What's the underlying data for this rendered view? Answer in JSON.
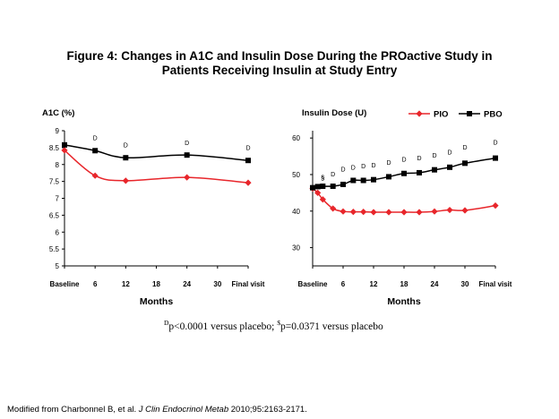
{
  "title": {
    "line1": "Figure 4: Changes in A1C and Insulin Dose During the PROactive Study in",
    "line2": "Patients Receiving Insulin at Study Entry"
  },
  "footnote": {
    "sup_a": "D",
    "text_a": "p<0.0001 versus placebo; ",
    "sup_b": "$",
    "text_b": "p=0.0371 versus placebo"
  },
  "source": {
    "prefix": "Modified from Charbonnel B, et al. ",
    "journal": "J Clin Endocrinol Metab",
    "suffix": " 2010;95:2163-2171."
  },
  "colors": {
    "pio": "#e8262b",
    "pbo": "#000000"
  },
  "chart_data": [
    {
      "type": "line",
      "ylabel": "A1C (%)",
      "xlabel": "Months",
      "ylim": [
        5,
        9
      ],
      "xlim": [
        0,
        36
      ],
      "yticks": [
        5,
        5.5,
        6,
        6.5,
        7,
        7.5,
        8,
        8.5,
        9
      ],
      "xticks": [
        {
          "v": 0,
          "label": "Baseline",
          "bold": true
        },
        {
          "v": 6,
          "label": "6"
        },
        {
          "v": 12,
          "label": "12"
        },
        {
          "v": 18,
          "label": "18"
        },
        {
          "v": 24,
          "label": "24"
        },
        {
          "v": 30,
          "label": "30"
        },
        {
          "v": 36,
          "label": "Final visit",
          "bold": true
        }
      ],
      "series": [
        {
          "key": "pio",
          "marker": "diamond",
          "x": [
            0,
            6,
            12,
            24,
            36
          ],
          "y": [
            8.42,
            7.67,
            7.52,
            7.62,
            7.46
          ]
        },
        {
          "key": "pbo",
          "marker": "square",
          "x": [
            0,
            6,
            12,
            24,
            36
          ],
          "y": [
            8.58,
            8.41,
            8.2,
            8.28,
            8.12
          ]
        }
      ],
      "annotations": [
        {
          "x": 6,
          "y": 8.72,
          "text": "D"
        },
        {
          "x": 12,
          "y": 8.51,
          "text": "D"
        },
        {
          "x": 24,
          "y": 8.58,
          "text": "D"
        },
        {
          "x": 36,
          "y": 8.43,
          "text": "D"
        }
      ]
    },
    {
      "type": "line",
      "ylabel": "Insulin Dose (U)",
      "xlabel": "Months",
      "ylim": [
        25,
        62
      ],
      "xlim": [
        0,
        36
      ],
      "yticks": [
        30,
        40,
        50,
        60
      ],
      "xticks": [
        {
          "v": 0,
          "label": "Baseline",
          "bold": true
        },
        {
          "v": 6,
          "label": "6"
        },
        {
          "v": 12,
          "label": "12"
        },
        {
          "v": 18,
          "label": "18"
        },
        {
          "v": 24,
          "label": "24"
        },
        {
          "v": 30,
          "label": "30"
        },
        {
          "v": 36,
          "label": "Final visit",
          "bold": true
        }
      ],
      "legend": {
        "position": "top",
        "entries": [
          {
            "key": "pio",
            "label": "PIO"
          },
          {
            "key": "pbo",
            "label": "PBO"
          }
        ]
      },
      "series": [
        {
          "key": "pio",
          "name": "PIO",
          "marker": "diamond",
          "x": [
            0,
            1,
            2,
            4,
            6,
            8,
            10,
            12,
            15,
            18,
            21,
            24,
            27,
            30,
            36
          ],
          "y": [
            46.2,
            45.0,
            43.2,
            40.7,
            39.9,
            39.8,
            39.8,
            39.7,
            39.7,
            39.7,
            39.7,
            39.9,
            40.3,
            40.2,
            41.5
          ]
        },
        {
          "key": "pbo",
          "name": "PBO",
          "marker": "square",
          "x": [
            0,
            1,
            2,
            4,
            6,
            8,
            10,
            12,
            15,
            18,
            21,
            24,
            27,
            30,
            36
          ],
          "y": [
            46.4,
            46.7,
            46.8,
            46.8,
            47.3,
            48.4,
            48.4,
            48.6,
            49.4,
            50.3,
            50.5,
            51.3,
            52.0,
            53.1,
            54.5
          ]
        }
      ],
      "annotations": [
        {
          "x": 2,
          "y": 48.7,
          "text": "§"
        },
        {
          "x": 4,
          "y": 49.5,
          "text": "D"
        },
        {
          "x": 6,
          "y": 50.8,
          "text": "D"
        },
        {
          "x": 8,
          "y": 51.4,
          "text": "D"
        },
        {
          "x": 10,
          "y": 51.7,
          "text": "D"
        },
        {
          "x": 12,
          "y": 51.9,
          "text": "D"
        },
        {
          "x": 15,
          "y": 52.7,
          "text": "D"
        },
        {
          "x": 18,
          "y": 53.5,
          "text": "D"
        },
        {
          "x": 21,
          "y": 53.9,
          "text": "D"
        },
        {
          "x": 24,
          "y": 54.7,
          "text": "D"
        },
        {
          "x": 27,
          "y": 55.5,
          "text": "D"
        },
        {
          "x": 30,
          "y": 56.9,
          "text": "D"
        },
        {
          "x": 36,
          "y": 58.2,
          "text": "D"
        }
      ]
    }
  ]
}
